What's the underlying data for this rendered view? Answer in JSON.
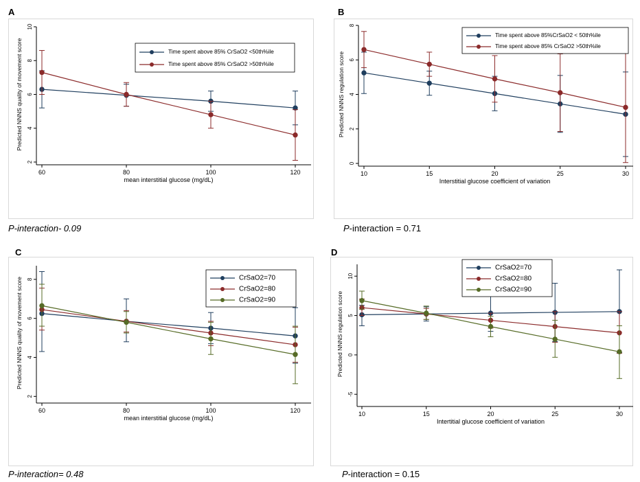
{
  "colors": {
    "blue": "#1f3e5e",
    "red": "#8b2a2a",
    "green": "#566b26"
  },
  "chart_data": [
    {
      "panel": "A",
      "type": "line",
      "xlabel": "mean interstitial glucose (mg/dL)",
      "ylabel": "Predicted NNNS quality of movement score",
      "xticks": [
        60,
        80,
        100,
        120
      ],
      "yticks": [
        2,
        4,
        6,
        8,
        10
      ],
      "xlim": [
        60,
        120
      ],
      "ylim": [
        2,
        10
      ],
      "legend_position": "top-right",
      "p_label": "P-interaction- 0.09",
      "p_italic_all": true,
      "series": [
        {
          "name": "Time spent above 85% CrSaO2 <50th%ile",
          "color": "blue",
          "x": [
            60,
            80,
            100,
            120
          ],
          "y": [
            6.3,
            5.95,
            5.6,
            5.2
          ],
          "lo": [
            5.2,
            5.3,
            5.0,
            4.2
          ],
          "hi": [
            7.4,
            6.6,
            6.2,
            6.2
          ]
        },
        {
          "name": "Time spent above 85% CrSaO2 >50th%ile",
          "color": "red",
          "x": [
            60,
            80,
            100,
            120
          ],
          "y": [
            7.3,
            6.0,
            4.8,
            3.6
          ],
          "lo": [
            6.0,
            5.3,
            4.0,
            2.1
          ],
          "hi": [
            8.6,
            6.7,
            5.6,
            5.1
          ]
        }
      ]
    },
    {
      "panel": "B",
      "type": "line",
      "xlabel": "Interstitial glucose coefficient of variation",
      "ylabel": "Predicted NNNS regulation score",
      "xticks": [
        10,
        15,
        20,
        25,
        30
      ],
      "yticks": [
        0,
        2,
        4,
        6,
        8
      ],
      "xlim": [
        10,
        30
      ],
      "ylim": [
        0,
        8
      ],
      "legend_position": "top-right",
      "p_label": "P-interaction = 0.71",
      "p_italic_prefix": "P",
      "series": [
        {
          "name": "Time spent above 85%CrSaO2 < 50th%ile",
          "color": "blue",
          "x": [
            10,
            15,
            20,
            25,
            30
          ],
          "y": [
            5.25,
            4.65,
            4.05,
            3.45,
            2.85
          ],
          "lo": [
            4.05,
            3.95,
            3.05,
            1.8,
            0.4
          ],
          "hi": [
            6.45,
            5.35,
            5.05,
            5.1,
            5.3
          ]
        },
        {
          "name": "Time spent above 85% CrSaO2 >50th%ile",
          "color": "red",
          "x": [
            10,
            15,
            20,
            25,
            30
          ],
          "y": [
            6.6,
            5.75,
            4.9,
            4.1,
            3.25
          ],
          "lo": [
            5.55,
            5.05,
            3.55,
            1.85,
            0.05
          ],
          "hi": [
            7.65,
            6.45,
            6.25,
            6.35,
            6.45
          ]
        }
      ]
    },
    {
      "panel": "C",
      "type": "line",
      "xlabel": "mean interstitial glucose (mg/dL)",
      "ylabel": "Predicted NNNS quality of movement score",
      "xticks": [
        60,
        80,
        100,
        120
      ],
      "yticks": [
        2,
        4,
        6,
        8
      ],
      "xlim": [
        60,
        120
      ],
      "ylim": [
        1.8,
        8.7
      ],
      "legend_position": "top-right",
      "p_label": "P-interaction= 0.48",
      "p_italic_all": true,
      "series": [
        {
          "name": "CrSaO2=70",
          "color": "blue",
          "x": [
            60,
            80,
            100,
            120
          ],
          "y": [
            6.25,
            5.85,
            5.5,
            5.1
          ],
          "lo": [
            4.3,
            4.8,
            4.7,
            3.7
          ],
          "hi": [
            8.4,
            7.0,
            6.3,
            6.55
          ]
        },
        {
          "name": "CrSaO2=80",
          "color": "red",
          "x": [
            60,
            80,
            100,
            120
          ],
          "y": [
            6.45,
            5.85,
            5.25,
            4.65
          ],
          "lo": [
            5.4,
            5.3,
            4.6,
            3.75
          ],
          "hi": [
            7.55,
            6.4,
            5.85,
            5.55
          ]
        },
        {
          "name": "CrSaO2=90",
          "color": "green",
          "x": [
            60,
            80,
            100,
            120
          ],
          "y": [
            6.65,
            5.8,
            4.95,
            4.15
          ],
          "lo": [
            5.6,
            5.25,
            4.15,
            2.65
          ],
          "hi": [
            7.75,
            6.35,
            5.8,
            5.6
          ]
        }
      ]
    },
    {
      "panel": "D",
      "type": "line",
      "xlabel": "Intertitial glucose coefficient of variation",
      "ylabel": "Predicted NNNS regulation score",
      "xticks": [
        10,
        15,
        20,
        25,
        30
      ],
      "yticks": [
        -5,
        0,
        5,
        10
      ],
      "xlim": [
        10,
        30
      ],
      "ylim": [
        -6.2,
        11.5
      ],
      "legend_position": "top-center",
      "p_label": "P-interaction = 0.15",
      "p_italic_prefix": "P",
      "series": [
        {
          "name": "CrSaO2=70",
          "color": "blue",
          "x": [
            10,
            15,
            20,
            25,
            30
          ],
          "y": [
            5.1,
            5.2,
            5.3,
            5.4,
            5.5
          ],
          "lo": [
            3.7,
            4.3,
            3.0,
            1.7,
            0.3
          ],
          "hi": [
            6.3,
            6.1,
            7.5,
            9.1,
            10.8
          ]
        },
        {
          "name": "CrSaO2=80",
          "color": "red",
          "x": [
            10,
            15,
            20,
            25,
            30
          ],
          "y": [
            6.0,
            5.2,
            4.4,
            3.6,
            2.8
          ],
          "lo": [
            5.0,
            4.5,
            3.4,
            1.6,
            0.2
          ],
          "hi": [
            7.1,
            5.9,
            5.3,
            5.5,
            5.5
          ]
        },
        {
          "name": "CrSaO2=90",
          "color": "green",
          "x": [
            10,
            15,
            20,
            25,
            30
          ],
          "y": [
            6.9,
            5.3,
            3.6,
            2.0,
            0.4
          ],
          "lo": [
            5.8,
            4.5,
            2.3,
            -0.3,
            -3.0
          ],
          "hi": [
            8.1,
            6.2,
            4.9,
            4.4,
            3.7
          ]
        }
      ]
    }
  ]
}
